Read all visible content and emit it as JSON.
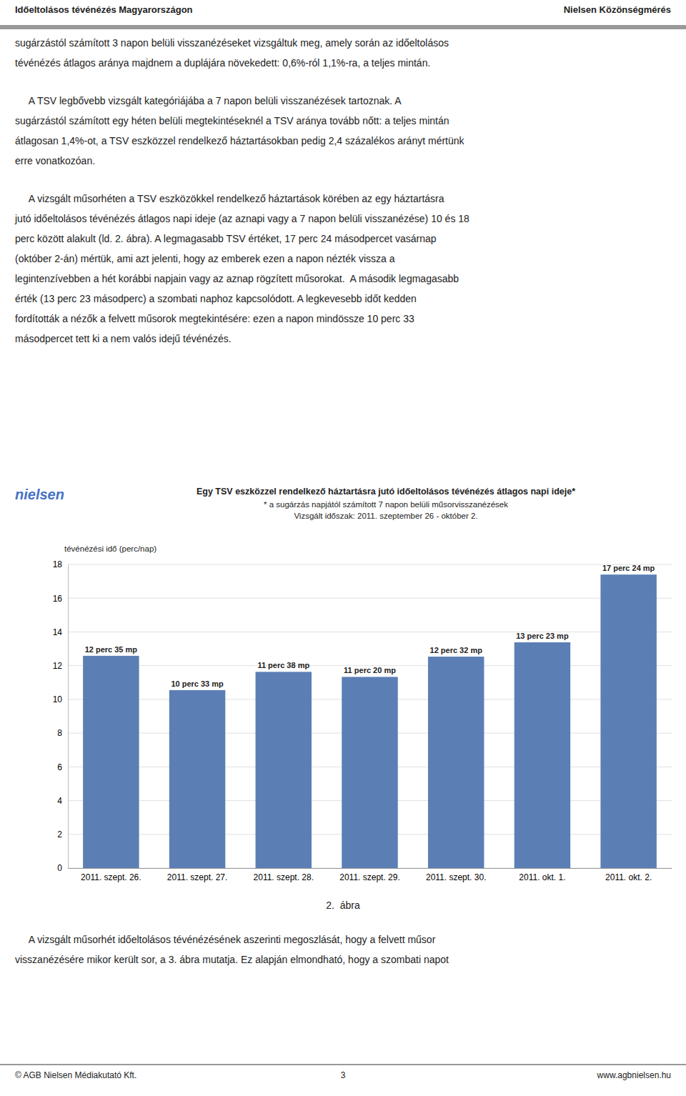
{
  "page": {
    "title_left": "Időeltolásos tévénézés Magyarországon",
    "title_right": "Nielsen Közönségmérés",
    "para1_lines": [
      "sugárzástól számított 3 napon belüli visszanézéseket vizsgáltuk meg, amely során az időeltolásos",
      "tévénézés átlagos aránya majdnem a duplájára növekedett: 0,6%-ról 1,1%-ra, a teljes mintán."
    ],
    "para2_lines": [
      "     A TSV legbővebb vizsgált kategóriájába a 7 napon belüli visszanézések tartoznak. A",
      "sugárzástól számított egy héten belüli megtekintéseknél a TSV aránya tovább nőtt: a teljes mintán",
      "átlagosan 1,4%-ot, a TSV eszközzel rendelkező háztartásokban pedig 2,4 százalékos arányt mértünk",
      "erre vonatkozóan."
    ],
    "para3_lines": [
      "     A vizsgált műsorhéten a TSV eszközökkel rendelkező háztartások körében az egy háztartásra",
      "jutó időeltolásos tévénézés átlagos napi ideje (az aznapi vagy a 7 napon belüli visszanézése) 10 és 18",
      "perc között alakult (ld. 2. ábra). A legmagasabb TSV értéket, 17 perc 24 másodpercet vasárnap",
      "(október 2-án) mértük, ami azt jelenti, hogy az emberek ezen a napon nézték vissza a",
      "legintenzívebben a hét korábbi napjain vagy az aznap rögzített műsorokat.  A második legmagasabb",
      "érték (13 perc 23 másodperc) a szombati naphoz kapcsolódott. A legkevesebb időt kedden",
      "fordították a nézők a felvett műsorok megtekintésére: ezen a napon mindössze 10 perc 33",
      "másodpercet tett ki a nem valós idejű tévénézés."
    ],
    "logo": "nielsen",
    "figure_caption": "2.  ábra",
    "bottom_para_lines": [
      "     A vizsgált műsorhét időeltolásos tévénézésének aszerinti megoszlását, hogy a felvett műsor",
      "visszanézésére mikor került sor, a 3. ábra mutatja. Ez alapján elmondható, hogy a szombati napot"
    ],
    "footer_left": "© AGB Nielsen Médiakutató Kft.",
    "footer_center": "3",
    "footer_right": "www.agbnielsen.hu"
  },
  "chart_data": {
    "type": "bar",
    "title": "Egy TSV eszközzel rendelkező háztartásra jutó időeltolásos tévénézés átlagos napi ideje*",
    "subtitle": [
      "* a sugárzás napjától számított 7 napon belüli műsorvisszanézések",
      "Vizsgált időszak: 2011. szeptember 26 - október 2."
    ],
    "ylabel": "tévénézési idő (perc/nap)",
    "categories": [
      "2011. szept. 26.",
      "2011. szept. 27.",
      "2011. szept. 28.",
      "2011. szept. 29.",
      "2011. szept. 30.",
      "2011. okt. 1.",
      "2011. okt. 2."
    ],
    "values": [
      12.583,
      10.55,
      11.633,
      11.333,
      12.533,
      13.383,
      17.4
    ],
    "value_labels": [
      "12 perc 35 mp",
      "10 perc 33 mp",
      "11 perc 38 mp",
      "11 perc 20 mp",
      "12 perc 32 mp",
      "13 perc 23 mp",
      "17 perc 24 mp"
    ],
    "data_labels": true,
    "color": "#5b7fb5",
    "ylim": [
      0,
      18
    ],
    "yticks": [
      0,
      2,
      4,
      6,
      8,
      10,
      12,
      14,
      16,
      18
    ],
    "grid": true
  }
}
